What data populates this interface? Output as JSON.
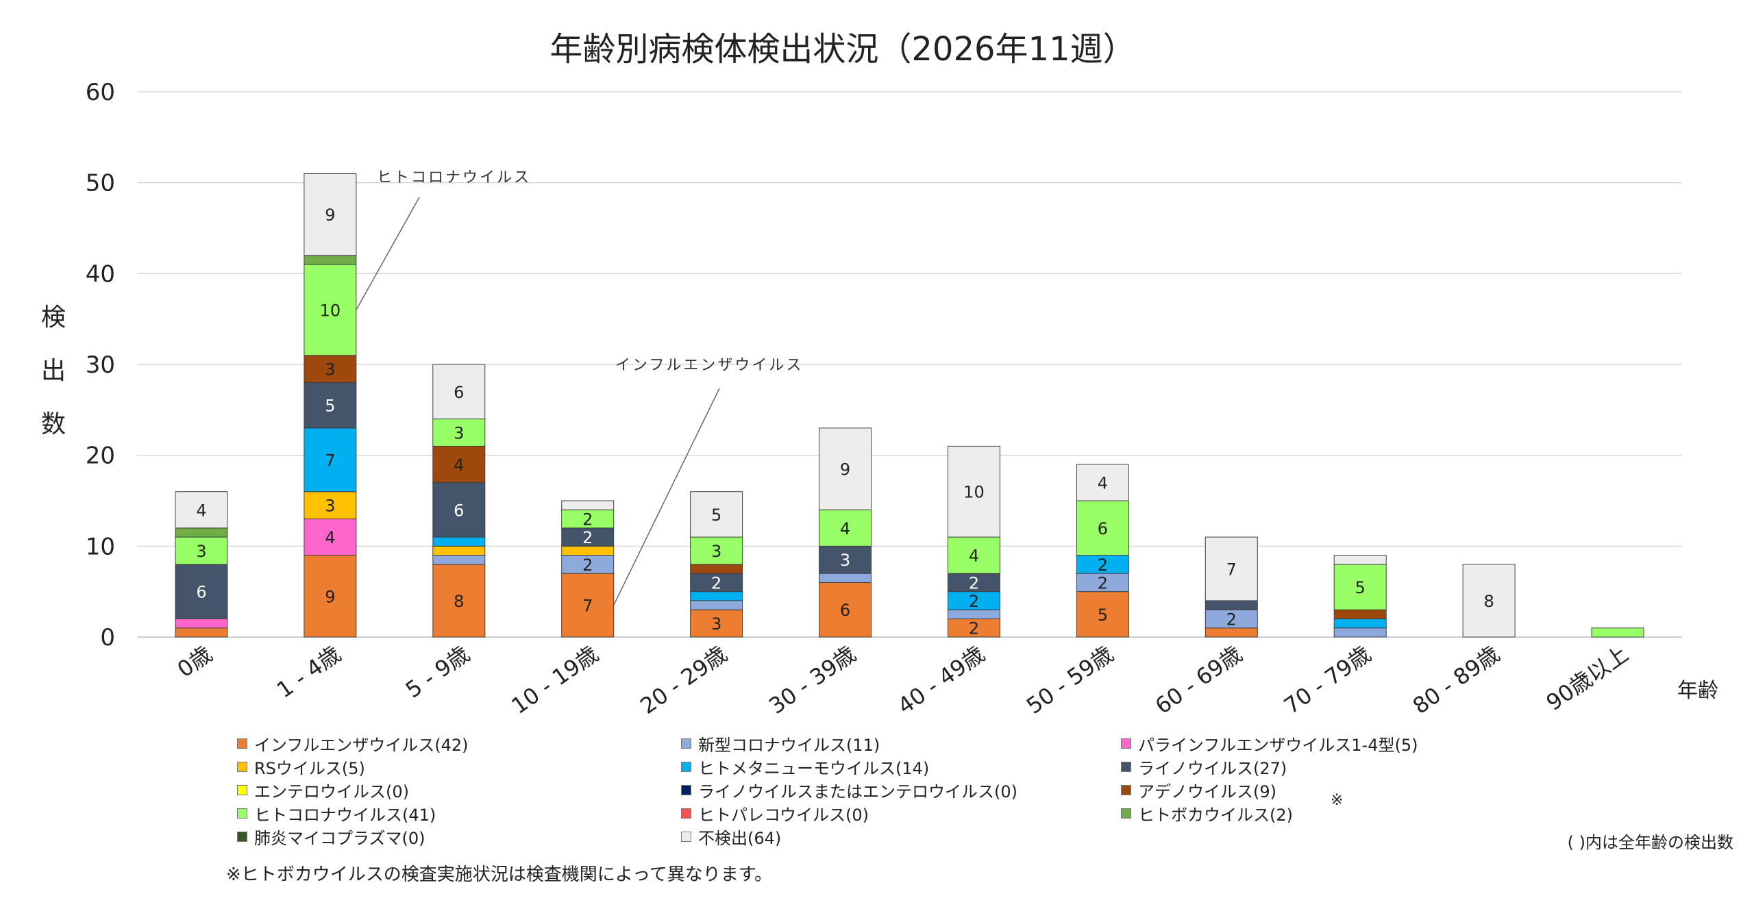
{
  "colors": {
    "influenza": "#ED7D31",
    "sars_cov2": "#8EA9DB",
    "parainfluenza": "#FF66CC",
    "rsv": "#FFC000",
    "hmpv": "#00B0F0",
    "rhino": "#44546A",
    "entero": "#FFFF00",
    "rhino_entero": "#002060",
    "adeno": "#9E480E",
    "corona": "#99FF66",
    "parecho": "#FF4F4F",
    "boca": "#70AD47",
    "mycoplasma": "#375623",
    "negative": "#EDEDED"
  },
  "chart_data": {
    "type": "bar",
    "stacked": true,
    "title": "年齢別病検体検出状況（2026年11週）",
    "ylabel": "検出数",
    "xlabel": "年齢",
    "ylim": [
      0,
      60
    ],
    "yticks": [
      0,
      10,
      20,
      30,
      40,
      50,
      60
    ],
    "categories": [
      "0歳",
      "1 - 4歳",
      "5 - 9歳",
      "10 - 19歳",
      "20 - 29歳",
      "30 - 39歳",
      "40 - 49歳",
      "50 - 59歳",
      "60 - 69歳",
      "70 - 79歳",
      "80 - 89歳",
      "90歳以上"
    ],
    "series": [
      {
        "key": "influenza",
        "name": "インフルエンザウイルス(42)",
        "color": "#ED7D31",
        "values": [
          1,
          9,
          8,
          7,
          3,
          6,
          2,
          5,
          1,
          0,
          0,
          0
        ]
      },
      {
        "key": "sars_cov2",
        "name": "新型コロナウイルス(11)",
        "color": "#8EA9DB",
        "values": [
          0,
          0,
          1,
          2,
          1,
          1,
          1,
          2,
          2,
          1,
          0,
          0
        ]
      },
      {
        "key": "parainfluenza",
        "name": "パラインフルエンザウイルス1-4型(5)",
        "color": "#FF66CC",
        "values": [
          1,
          4,
          0,
          0,
          0,
          0,
          0,
          0,
          0,
          0,
          0,
          0
        ]
      },
      {
        "key": "rsv",
        "name": "RSウイルス(5)",
        "color": "#FFC000",
        "values": [
          0,
          3,
          1,
          1,
          0,
          0,
          0,
          0,
          0,
          0,
          0,
          0
        ]
      },
      {
        "key": "hmpv",
        "name": "ヒトメタニューモウイルス(14)",
        "color": "#00B0F0",
        "values": [
          0,
          7,
          1,
          0,
          1,
          0,
          2,
          2,
          0,
          1,
          0,
          0
        ]
      },
      {
        "key": "rhino",
        "name": "ライノウイルス(27)",
        "color": "#44546A",
        "values": [
          6,
          5,
          6,
          2,
          2,
          3,
          2,
          0,
          1,
          0,
          0,
          0
        ]
      },
      {
        "key": "entero",
        "name": "エンテロウイルス(0)",
        "color": "#FFFF00",
        "values": [
          0,
          0,
          0,
          0,
          0,
          0,
          0,
          0,
          0,
          0,
          0,
          0
        ]
      },
      {
        "key": "rhino_entero",
        "name": "ライノウイルスまたはエンテロウイルス(0)",
        "color": "#002060",
        "values": [
          0,
          0,
          0,
          0,
          0,
          0,
          0,
          0,
          0,
          0,
          0,
          0
        ]
      },
      {
        "key": "adeno",
        "name": "アデノウイルス(9)",
        "color": "#9E480E",
        "values": [
          0,
          3,
          4,
          0,
          1,
          0,
          0,
          0,
          0,
          1,
          0,
          0
        ]
      },
      {
        "key": "corona",
        "name": "ヒトコロナウイルス(41)",
        "color": "#99FF66",
        "values": [
          3,
          10,
          3,
          2,
          3,
          4,
          4,
          6,
          0,
          5,
          0,
          1
        ]
      },
      {
        "key": "parecho",
        "name": "ヒトパレコウイルス(0)",
        "color": "#FF4F4F",
        "values": [
          0,
          0,
          0,
          0,
          0,
          0,
          0,
          0,
          0,
          0,
          0,
          0
        ]
      },
      {
        "key": "boca",
        "name": "ヒトボカウイルス(2)",
        "color": "#70AD47",
        "values": [
          1,
          1,
          0,
          0,
          0,
          0,
          0,
          0,
          0,
          0,
          0,
          0
        ]
      },
      {
        "key": "mycoplasma",
        "name": "肺炎マイコプラズマ(0)",
        "color": "#375623",
        "values": [
          0,
          0,
          0,
          0,
          0,
          0,
          0,
          0,
          0,
          0,
          0,
          0
        ]
      },
      {
        "key": "negative",
        "name": "不検出(64)",
        "color": "#EDEDED",
        "values": [
          4,
          9,
          6,
          1,
          5,
          9,
          10,
          4,
          7,
          1,
          8,
          0
        ]
      }
    ],
    "annotations": [
      {
        "text": "ヒトコロナウイルス",
        "category": "1 - 4歳",
        "series": "corona"
      },
      {
        "text": "インフルエンザウイルス",
        "category": "10 - 19歳",
        "series": "influenza"
      }
    ]
  },
  "legend_note_mark": "※",
  "legend_right_note": "( )内は全年齢の検出数",
  "footnote": "※ヒトボカウイルスの検査実施状況は検査機関によって異なります。"
}
